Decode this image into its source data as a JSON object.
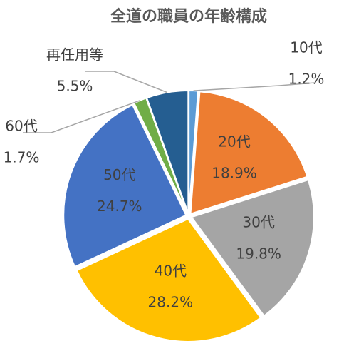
{
  "chart_data": {
    "type": "pie",
    "title": "全道の職員の年齢構成",
    "categories": [
      "10代",
      "20代",
      "30代",
      "40代",
      "50代",
      "60代",
      "再任用等"
    ],
    "values": [
      1.2,
      18.9,
      19.8,
      28.2,
      24.7,
      1.7,
      5.5
    ],
    "value_labels": [
      "1.2%",
      "18.9%",
      "19.8%",
      "28.2%",
      "24.7%",
      "1.7%",
      "5.5%"
    ],
    "colors": [
      "#5b9bd5",
      "#ed7d31",
      "#a5a5a5",
      "#ffc000",
      "#4472c4",
      "#70ad47",
      "#255e91"
    ]
  }
}
